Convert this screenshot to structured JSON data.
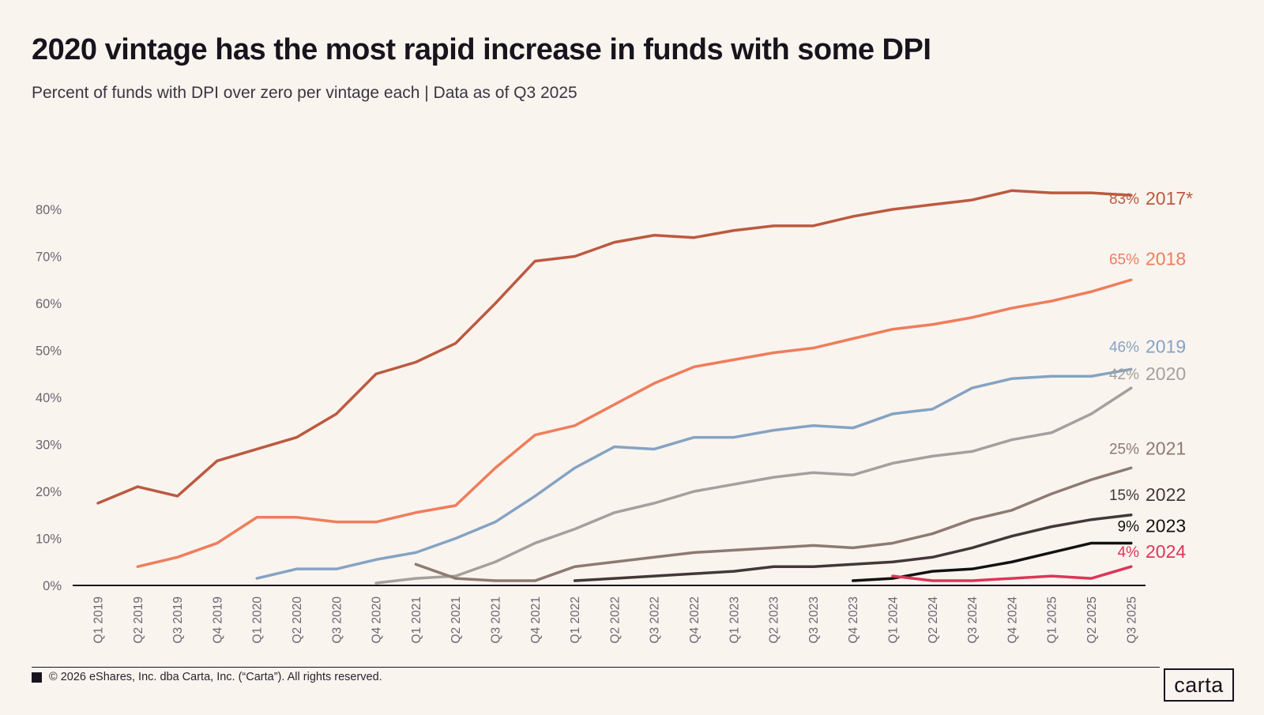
{
  "title": "2020 vintage has the most rapid increase in funds with some DPI",
  "subtitle": "Percent of funds with DPI over zero per vintage each | Data as of Q3 2025",
  "footer": {
    "copyright": "© 2026 eShares, Inc. dba Carta, Inc. (“Carta”). All rights reserved.",
    "logo_text": "carta"
  },
  "chart_data": {
    "type": "line",
    "grid": false,
    "legend_position": "right-of-line-ends",
    "x_categories": [
      "Q1 2019",
      "Q2 2019",
      "Q3 2019",
      "Q4 2019",
      "Q1 2020",
      "Q2 2020",
      "Q3 2020",
      "Q4 2020",
      "Q1 2021",
      "Q2 2021",
      "Q3 2021",
      "Q4 2021",
      "Q1 2022",
      "Q2 2022",
      "Q3 2022",
      "Q4 2022",
      "Q1 2023",
      "Q2 2023",
      "Q3 2023",
      "Q4 2023",
      "Q1 2024",
      "Q2 2024",
      "Q3 2024",
      "Q4 2024",
      "Q1 2025",
      "Q2 2025",
      "Q3 2025"
    ],
    "y_axis": {
      "min": 0,
      "max": 80,
      "tick_step": 10,
      "tick_values": [
        0,
        10,
        20,
        30,
        40,
        50,
        60,
        70,
        80
      ],
      "tick_labels": [
        "0%",
        "10%",
        "20%",
        "30%",
        "40%",
        "50%",
        "60%",
        "70%",
        "80%"
      ]
    },
    "series": [
      {
        "name": "2017*",
        "end_label": "83%",
        "color": "#bb5a40",
        "start_index": 0,
        "values": [
          17.5,
          21,
          19,
          26.5,
          29,
          31.5,
          36.5,
          45,
          47.5,
          51.5,
          60,
          69,
          70,
          73,
          74.5,
          74,
          75.5,
          76.5,
          76.5,
          78.5,
          80,
          81,
          82,
          84,
          83.5,
          83.5,
          83
        ]
      },
      {
        "name": "2018",
        "end_label": "65%",
        "color": "#ef7d5b",
        "start_index": 1,
        "values": [
          4,
          6,
          9,
          14.5,
          14.5,
          13.5,
          13.5,
          15.5,
          17,
          25,
          32,
          34,
          38.5,
          43,
          46.5,
          48,
          49.5,
          50.5,
          52.5,
          54.5,
          55.5,
          57,
          59,
          60.5,
          62.5,
          65
        ]
      },
      {
        "name": "2019",
        "end_label": "46%",
        "color": "#85a3c3",
        "start_index": 4,
        "values": [
          1.5,
          3.5,
          3.5,
          5.5,
          7,
          10,
          13.5,
          19,
          25,
          29.5,
          29,
          31.5,
          31.5,
          33,
          34,
          33.5,
          36.5,
          37.5,
          42,
          44,
          44.5,
          44.5,
          46
        ]
      },
      {
        "name": "2020",
        "end_label": "42%",
        "color": "#a3a09d",
        "start_index": 7,
        "values": [
          0.5,
          1.5,
          2,
          5,
          9,
          12,
          15.5,
          17.5,
          20,
          21.5,
          23,
          24,
          23.5,
          26,
          27.5,
          28.5,
          31,
          32.5,
          36.5,
          42
        ]
      },
      {
        "name": "2021",
        "end_label": "25%",
        "color": "#8d7a71",
        "start_index": 8,
        "values": [
          4.5,
          1.5,
          1,
          1,
          4,
          5,
          6,
          7,
          7.5,
          8,
          8.5,
          8,
          9,
          11,
          14,
          16,
          19.5,
          22.5,
          25
        ]
      },
      {
        "name": "2022",
        "end_label": "15%",
        "color": "#413837",
        "start_index": 12,
        "values": [
          1,
          1.5,
          2,
          2.5,
          3,
          4,
          4,
          4.5,
          5,
          6,
          8,
          10.5,
          12.5,
          14,
          15
        ]
      },
      {
        "name": "2023",
        "end_label": "9%",
        "color": "#121212",
        "start_index": 19,
        "values": [
          1,
          1.5,
          3,
          3.5,
          5,
          7,
          9,
          9
        ]
      },
      {
        "name": "2024",
        "end_label": "4%",
        "color": "#dd3558",
        "start_index": 20,
        "values": [
          2,
          1,
          1,
          1.5,
          2,
          1.5,
          4
        ]
      }
    ]
  }
}
